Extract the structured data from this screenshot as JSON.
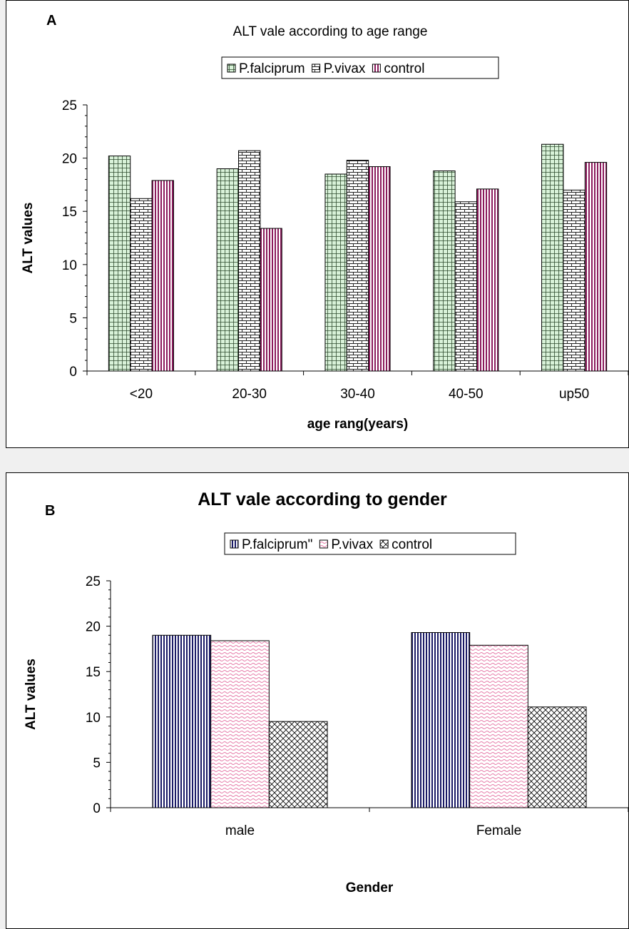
{
  "chart_data": [
    {
      "type": "bar",
      "panel_letter": "A",
      "title": "ALT vale according to age range",
      "xlabel": "age rang(years)",
      "ylabel": "ALT values",
      "ylim": [
        0,
        25
      ],
      "yticks": [
        0,
        5,
        10,
        15,
        20,
        25
      ],
      "categories": [
        "<20",
        "20-30",
        "30-40",
        "40-50",
        "up50"
      ],
      "legend_position": "top-center",
      "series": [
        {
          "name": "P.falciprum",
          "values": [
            20.2,
            19.0,
            18.5,
            18.8,
            21.3
          ],
          "color": "#d9f2d9",
          "pattern": "grid"
        },
        {
          "name": "P.vivax",
          "values": [
            16.2,
            20.7,
            19.8,
            15.9,
            17.0
          ],
          "color": "#ffffff",
          "pattern": "brick"
        },
        {
          "name": "control",
          "values": [
            17.9,
            13.4,
            19.2,
            17.1,
            19.6
          ],
          "color": "#8b1a5c",
          "pattern": "vertical"
        }
      ]
    },
    {
      "type": "bar",
      "panel_letter": "B",
      "title": "ALT vale according to gender",
      "xlabel": "Gender",
      "ylabel": "ALT values",
      "ylim": [
        0,
        25
      ],
      "yticks": [
        0,
        5,
        10,
        15,
        20,
        25
      ],
      "categories": [
        "male",
        "Female"
      ],
      "legend_position": "top-center",
      "series": [
        {
          "name": "P.falciprum\"",
          "values": [
            19.0,
            19.3
          ],
          "color": "#1a1a66",
          "pattern": "vertical"
        },
        {
          "name": "P.vivax",
          "values": [
            18.4,
            17.9
          ],
          "color": "#e67aa8",
          "pattern": "wave"
        },
        {
          "name": "control",
          "values": [
            9.5,
            11.1
          ],
          "color": "#000000",
          "pattern": "crosshatch"
        }
      ]
    }
  ]
}
